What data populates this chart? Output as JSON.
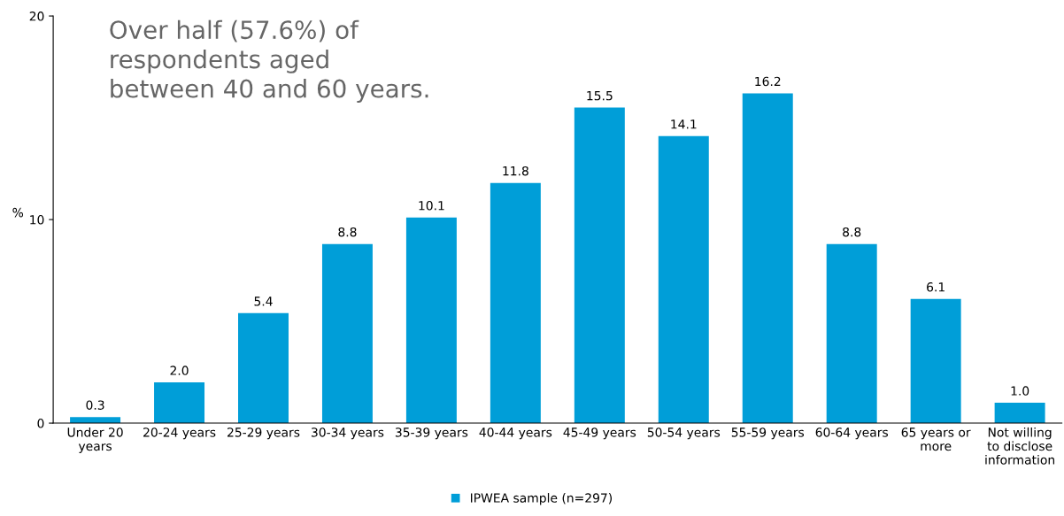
{
  "chart_data": {
    "type": "bar",
    "categories": [
      "Under 20\nyears",
      "20-24 years",
      "25-29 years",
      "30-34 years",
      "35-39 years",
      "40-44 years",
      "45-49 years",
      "50-54 years",
      "55-59 years",
      "60-64 years",
      "65 years or\nmore",
      "Not willing\nto disclose\ninformation"
    ],
    "series": [
      {
        "name": "IPWEA sample (n=297)",
        "color": "#009ed8",
        "values": [
          0.3,
          2.0,
          5.4,
          8.8,
          10.1,
          11.8,
          15.5,
          14.1,
          16.2,
          8.8,
          6.1,
          1.0
        ],
        "value_labels": [
          "0.3",
          "2.0",
          "5.4",
          "8.8",
          "10.1",
          "11.8",
          "15.5",
          "14.1",
          "16.2",
          "8.8",
          "6.1",
          "1.0"
        ]
      }
    ],
    "ylabel": "%",
    "ylim": [
      0,
      20
    ],
    "yticks": [
      0,
      10,
      20
    ],
    "annotations": [
      "Over half (57.6%) of\nrespondents aged\nbetween 40 and 60 years."
    ],
    "legend": "bottom",
    "grid": false
  }
}
